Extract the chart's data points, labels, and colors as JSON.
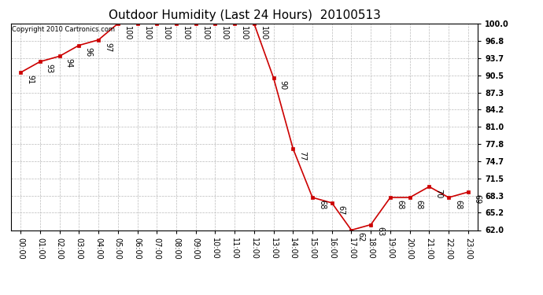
{
  "title": "Outdoor Humidity (Last 24 Hours)  20100513",
  "copyright": "Copyright 2010 Cartronics.com",
  "x_labels": [
    "00:00",
    "01:00",
    "02:00",
    "03:00",
    "04:00",
    "05:00",
    "06:00",
    "07:00",
    "08:00",
    "09:00",
    "10:00",
    "11:00",
    "12:00",
    "13:00",
    "14:00",
    "15:00",
    "16:00",
    "17:00",
    "18:00",
    "19:00",
    "20:00",
    "21:00",
    "22:00",
    "23:00"
  ],
  "x_values": [
    0,
    1,
    2,
    3,
    4,
    5,
    6,
    7,
    8,
    9,
    10,
    11,
    12,
    13,
    14,
    15,
    16,
    17,
    18,
    19,
    20,
    21,
    22,
    23
  ],
  "y_values": [
    91,
    93,
    94,
    96,
    97,
    100,
    100,
    100,
    100,
    100,
    100,
    100,
    100,
    90,
    77,
    68,
    67,
    62,
    63,
    68,
    68,
    70,
    68,
    69
  ],
  "y_labels": [
    62.0,
    65.2,
    68.3,
    71.5,
    74.7,
    77.8,
    81.0,
    84.2,
    87.3,
    90.5,
    93.7,
    96.8,
    100.0
  ],
  "ylim_min": 62.0,
  "ylim_max": 100.0,
  "line_color": "#cc0000",
  "marker_color": "#cc0000",
  "background_color": "#ffffff",
  "grid_color": "#bbbbbb",
  "title_fontsize": 11,
  "tick_fontsize": 7,
  "annotation_fontsize": 7,
  "copyright_fontsize": 6
}
